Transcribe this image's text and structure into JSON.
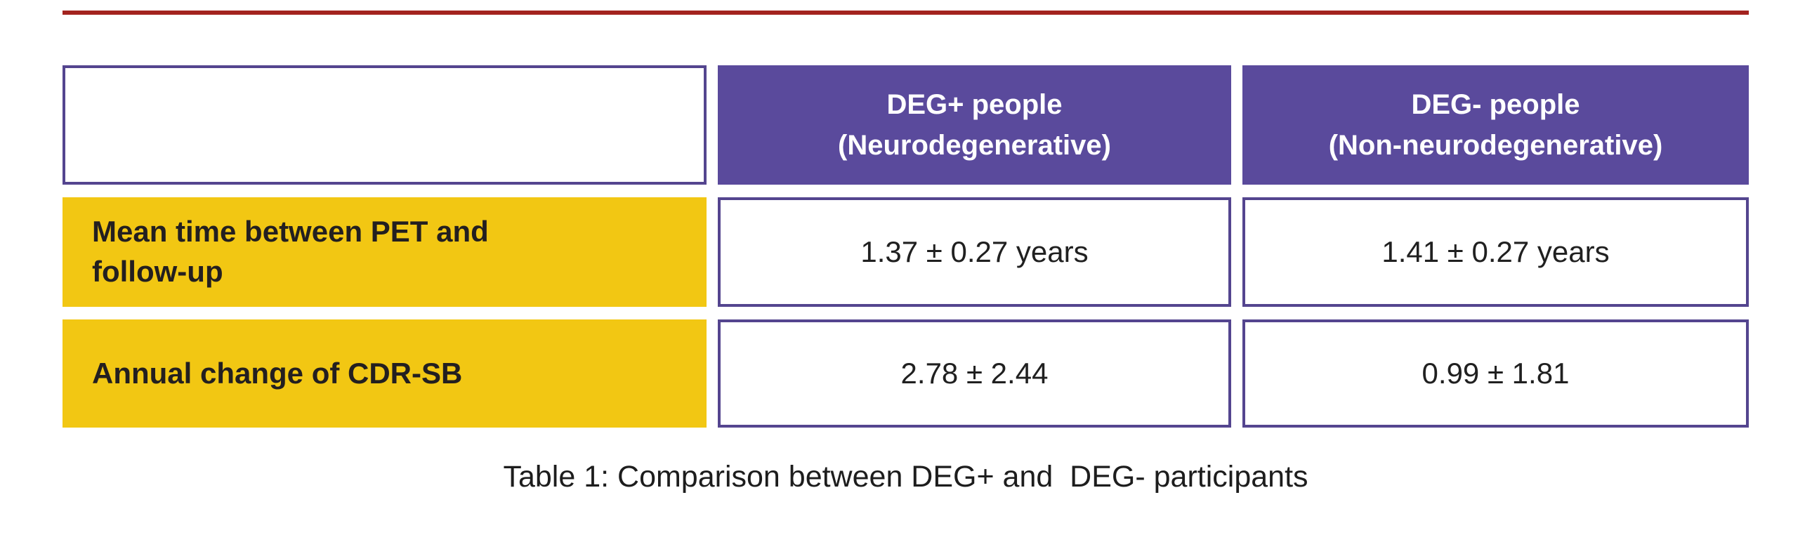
{
  "colors": {
    "header_bg": "#5A4A9C",
    "border": "#54458F",
    "row_label_bg": "#F2C713",
    "header_text": "#FFFFFF",
    "label_text": "#231F20",
    "body_text": "#202020",
    "caption_text": "#1D1D1D",
    "accent_rule": "#A3231F"
  },
  "table": {
    "columns": {
      "corner": "",
      "deg_plus": "DEG+ people\n(Neurodegenerative)",
      "deg_minus": "DEG- people\n(Non-neurodegenerative)"
    },
    "rows": [
      {
        "label": "Mean time between PET and\nfollow-up",
        "deg_plus": "1.37 ± 0.27 years",
        "deg_minus": "1.41 ± 0.27 years"
      },
      {
        "label": "Annual change of CDR-SB",
        "deg_plus": "2.78 ± 2.44",
        "deg_minus": "0.99 ± 1.81"
      }
    ]
  },
  "caption": "Table 1: Comparison between DEG+ and  DEG- participants"
}
